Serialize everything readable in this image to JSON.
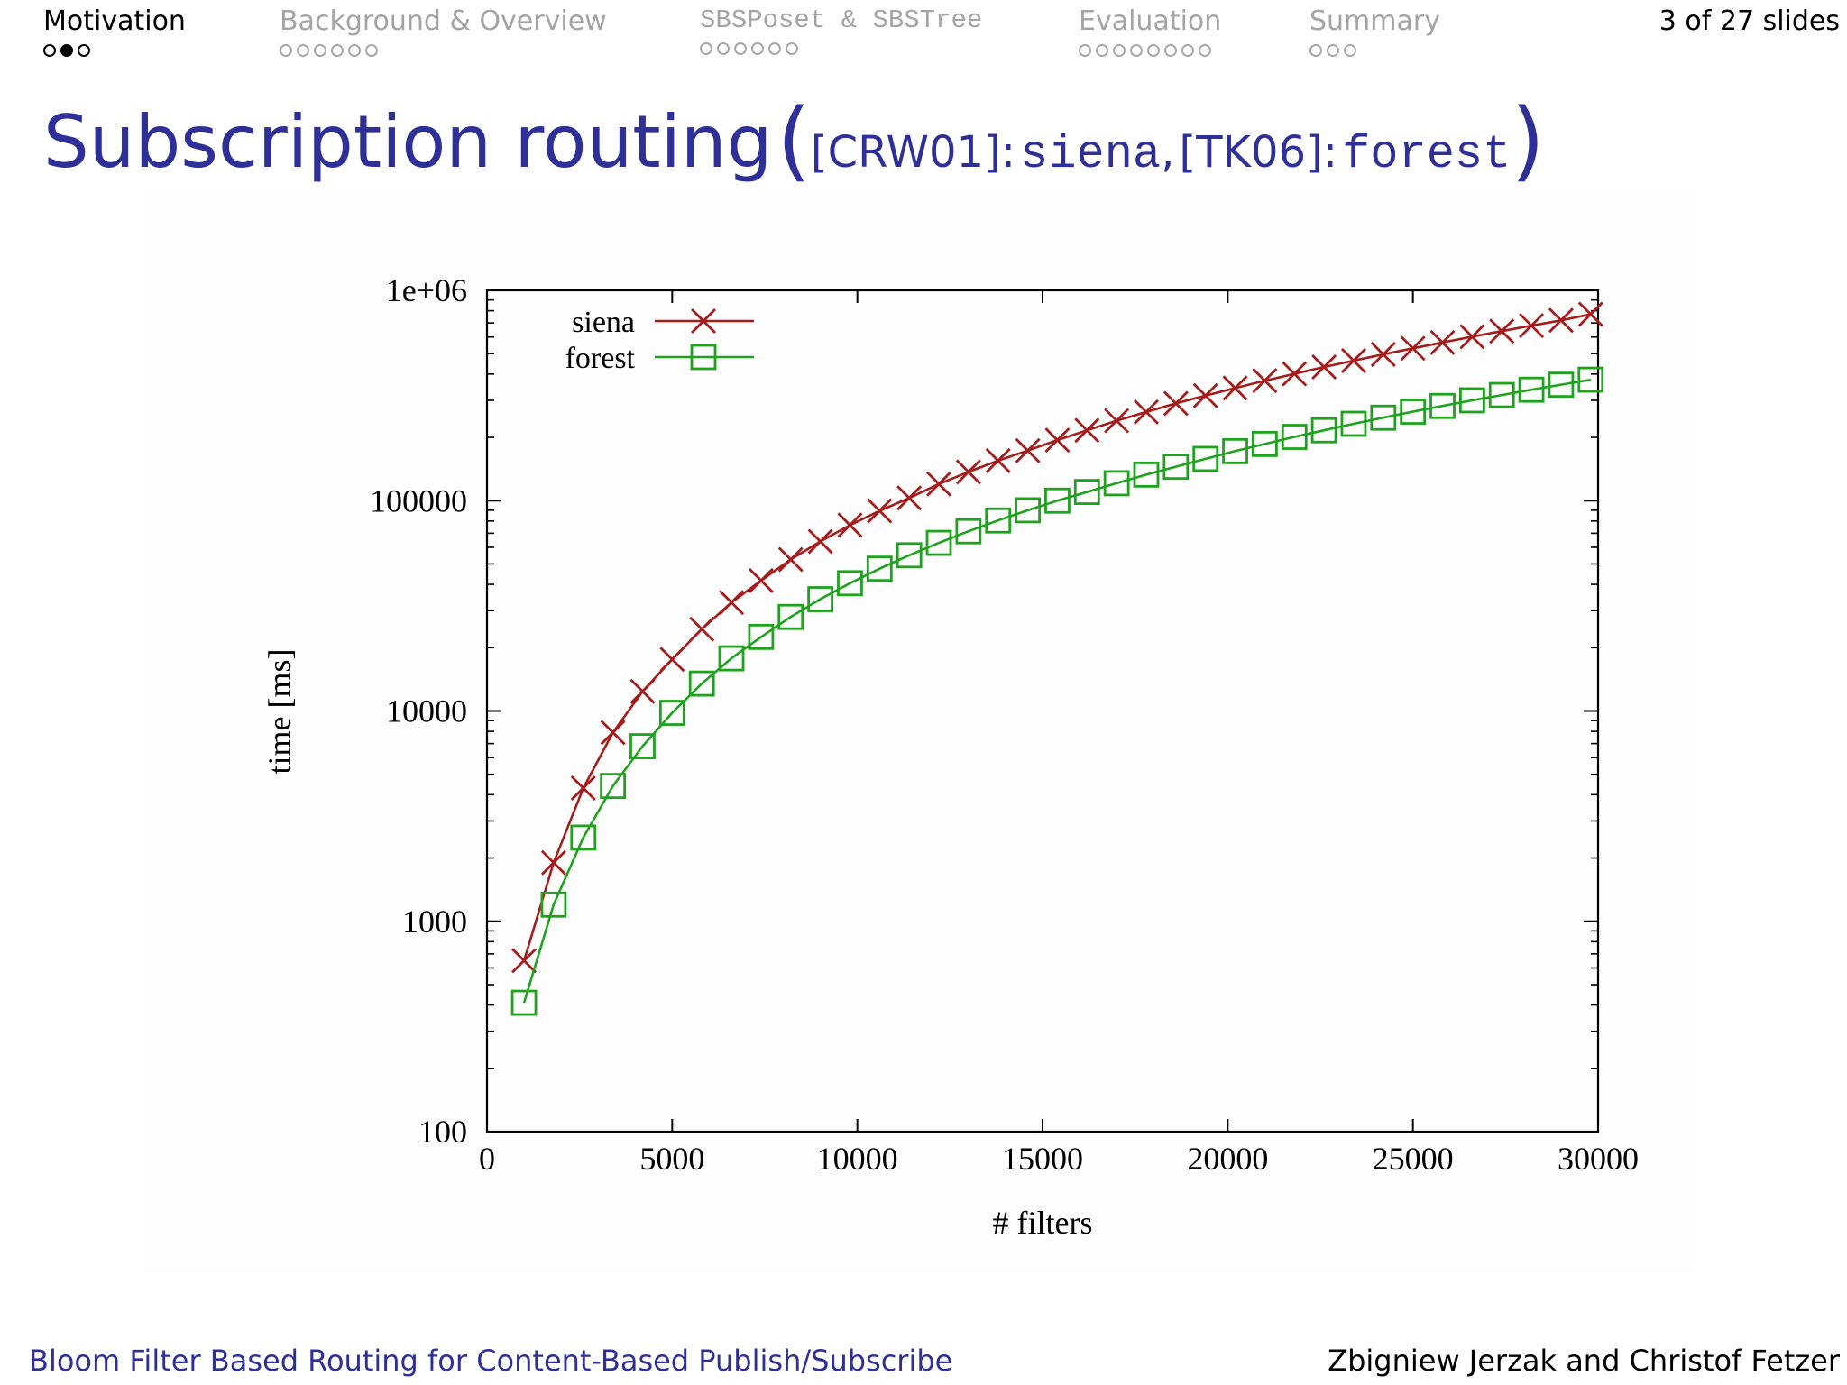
{
  "nav": {
    "sections": [
      {
        "label": "Motivation",
        "dots": 3,
        "current": 1,
        "active": true
      },
      {
        "label": "Background & Overview",
        "dots": 6,
        "current": -1,
        "active": false
      },
      {
        "label": "SBSPoset & SBSTree",
        "dots": 6,
        "current": -1,
        "active": false,
        "mono": true
      },
      {
        "label": "Evaluation",
        "dots": 8,
        "current": -1,
        "active": false
      },
      {
        "label": "Summary",
        "dots": 3,
        "current": -1,
        "active": false
      }
    ],
    "slide_count": "3 of 27 slides"
  },
  "title": {
    "main": "Subscription routing",
    "open_paren": "(",
    "ref1": "[CRW01]:",
    "name1": "siena",
    "comma": ",",
    "ref2": "[TK06]:",
    "name2": "forest",
    "close_paren": ")"
  },
  "footer": {
    "left": "Bloom Filter Based Routing for Content-Based Publish/Subscribe",
    "right": "Zbigniew Jerzak and Christof Fetzer"
  },
  "colors": {
    "title": "#2f2f98",
    "siena": "#a61c1c",
    "forest": "#1fa31f"
  },
  "chart_data": {
    "type": "line",
    "title": "",
    "xlabel": "# filters",
    "ylabel": "time [ms]",
    "xlim": [
      0,
      30000
    ],
    "ylim": [
      100,
      1000000
    ],
    "yscale": "log",
    "legend_position": "top-left",
    "grid": false,
    "x_ticks": [
      0,
      5000,
      10000,
      15000,
      20000,
      25000,
      30000
    ],
    "x_tick_labels": [
      "0",
      "5000",
      "10000",
      "15000",
      "20000",
      "25000",
      "30000"
    ],
    "y_ticks": [
      100,
      1000,
      10000,
      100000,
      1000000
    ],
    "y_tick_labels": [
      "100",
      "1000",
      "10000",
      "100000",
      "1e+06"
    ],
    "series": [
      {
        "name": "siena",
        "marker": "x",
        "x": [
          1000,
          1800,
          2600,
          3400,
          4200,
          5000,
          5800,
          6600,
          7400,
          8200,
          9000,
          9800,
          10600,
          11400,
          12200,
          13000,
          13800,
          14600,
          15400,
          16200,
          17000,
          17800,
          18600,
          19400,
          20200,
          21000,
          21800,
          22600,
          23400,
          24200,
          25000,
          25800,
          26600,
          27400,
          28200,
          29000,
          29800
        ],
        "values": [
          650,
          1900,
          4300,
          7900,
          12400,
          17600,
          24500,
          32800,
          41700,
          52500,
          64000,
          76500,
          89500,
          103000,
          120000,
          137000,
          155000,
          173000,
          194000,
          216000,
          240000,
          264000,
          290000,
          316000,
          343000,
          372000,
          401000,
          432000,
          463000,
          496000,
          530000,
          565000,
          602000,
          640000,
          680000,
          720000,
          770000
        ]
      },
      {
        "name": "forest",
        "marker": "square",
        "x": [
          1000,
          1800,
          2600,
          3400,
          4200,
          5000,
          5800,
          6600,
          7400,
          8200,
          9000,
          9800,
          10600,
          11400,
          12200,
          13000,
          13800,
          14600,
          15400,
          16200,
          17000,
          17800,
          18600,
          19400,
          20200,
          21000,
          21800,
          22600,
          23400,
          24200,
          25000,
          25800,
          26600,
          27400,
          28200,
          29000,
          29800
        ],
        "values": [
          410,
          1200,
          2500,
          4400,
          6800,
          9800,
          13500,
          17800,
          22500,
          28000,
          34000,
          40500,
          47500,
          55000,
          63000,
          71500,
          80500,
          90000,
          100000,
          110000,
          121000,
          133000,
          145000,
          158000,
          172000,
          186000,
          201000,
          216000,
          232000,
          248000,
          265000,
          282000,
          300000,
          318000,
          337000,
          356000,
          376000
        ]
      }
    ]
  }
}
